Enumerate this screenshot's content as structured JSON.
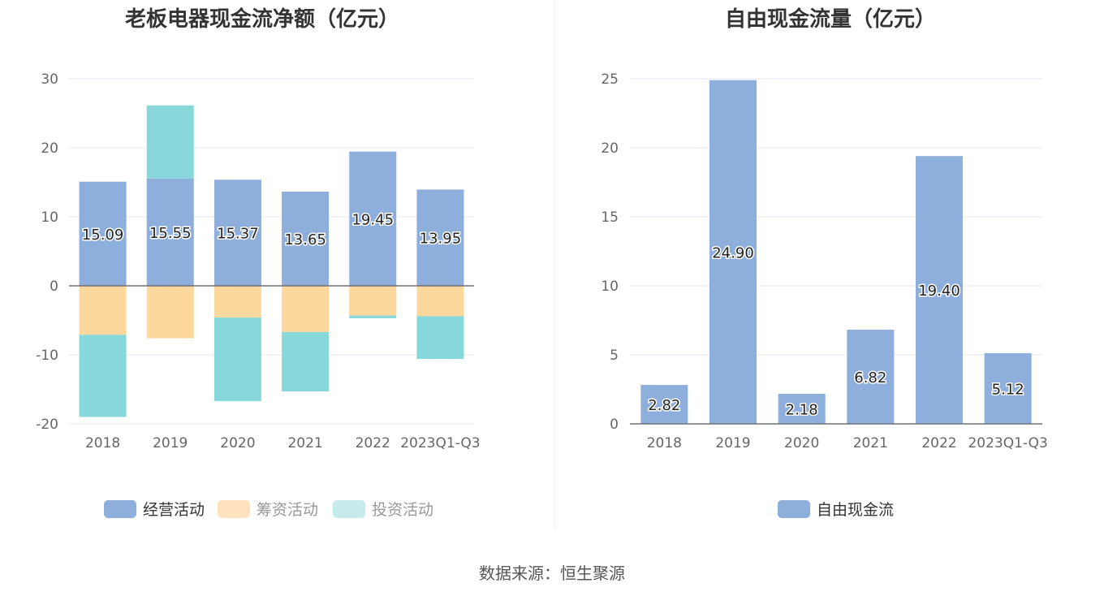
{
  "source_text": "数据来源：恒生聚源",
  "colors": {
    "operating": "#8eaedb",
    "financing": "#fdd89d",
    "investing": "#88d8db",
    "financing_legend": "#fde2bd",
    "investing_legend": "#c6ebec",
    "axis_text": "#666666",
    "title": "#333333",
    "grid": "#e3e7f2",
    "divider": "#eeeeee"
  },
  "chart_data": [
    {
      "type": "bar",
      "stacked": true,
      "title": "老板电器现金流净额（亿元）",
      "categories": [
        "2018",
        "2019",
        "2020",
        "2021",
        "2022",
        "2023Q1-Q3"
      ],
      "ylim": [
        -20,
        30
      ],
      "yticks": [
        30,
        20,
        10,
        0,
        -10,
        -20
      ],
      "grid": true,
      "legend_position": "bottom",
      "series": [
        {
          "name": "经营活动",
          "color_key": "operating",
          "legend_color_key": "operating",
          "values": [
            15.09,
            15.55,
            15.37,
            13.65,
            19.45,
            13.95
          ],
          "labels": true
        },
        {
          "name": "筹资活动",
          "color_key": "financing",
          "legend_color_key": "financing_legend",
          "values": [
            -7.1,
            -7.6,
            -4.6,
            -6.7,
            -4.3,
            -4.4
          ],
          "labels": false
        },
        {
          "name": "投资活动",
          "color_key": "investing",
          "legend_color_key": "investing_legend",
          "values": [
            -11.9,
            10.6,
            -12.1,
            -8.6,
            -0.4,
            -6.2
          ],
          "labels": false
        }
      ]
    },
    {
      "type": "bar",
      "stacked": false,
      "title": "自由现金流量（亿元）",
      "categories": [
        "2018",
        "2019",
        "2020",
        "2021",
        "2022",
        "2023Q1-Q3"
      ],
      "ylim": [
        0,
        25
      ],
      "yticks": [
        25,
        20,
        15,
        10,
        5,
        0
      ],
      "grid": true,
      "legend_position": "bottom",
      "series": [
        {
          "name": "自由现金流",
          "color_key": "operating",
          "legend_color_key": "operating",
          "values": [
            2.82,
            24.9,
            2.18,
            6.82,
            19.4,
            5.12
          ],
          "labels": true
        }
      ]
    }
  ]
}
